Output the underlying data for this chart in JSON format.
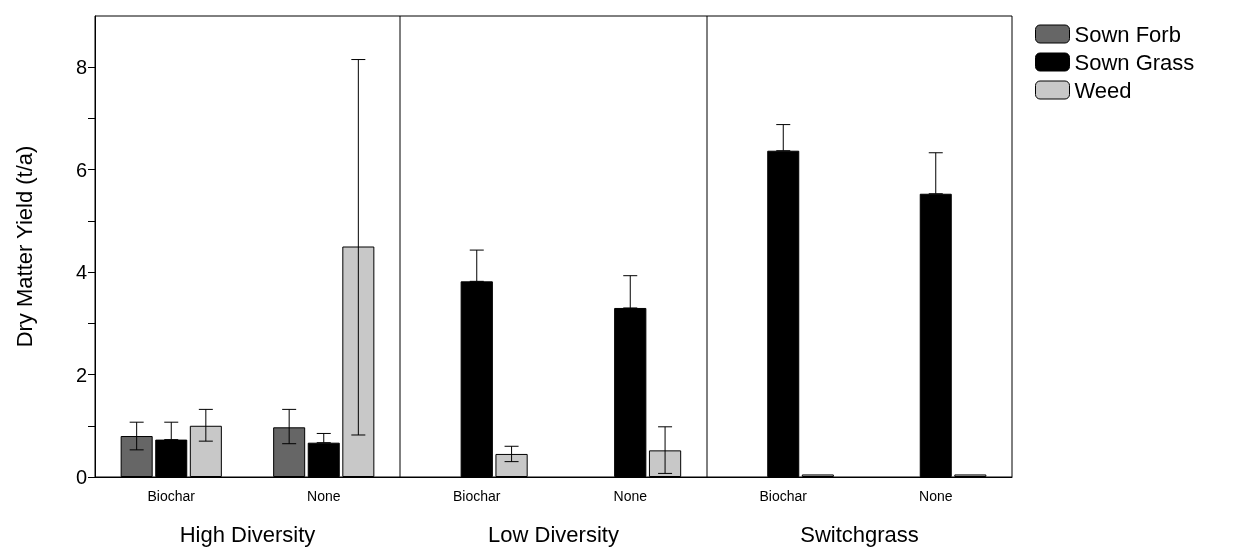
{
  "chart_data": [
    {
      "type": "bar",
      "categories": [
        "Biochar",
        "None"
      ],
      "xlabel": "High Diversity",
      "ylabel": "Dry Matter Yield (t/a)",
      "ylim": [
        0,
        9
      ],
      "yticks": [
        0,
        {
          "value": 1,
          "label": null
        },
        2,
        {
          "value": 3,
          "label": null
        },
        4,
        {
          "value": 5,
          "label": null
        },
        6,
        {
          "value": 7,
          "label": null
        },
        8
      ],
      "legend": false,
      "series": [
        {
          "color": "#666666",
          "values": [
            0.8,
            0.97
          ],
          "errors": [
            [
              0.53,
              1.07
            ],
            [
              0.65,
              1.32
            ]
          ]
        },
        {
          "color": "#000000",
          "values": [
            0.73,
            0.67
          ],
          "errors": [
            [
              0.73,
              1.07
            ],
            [
              0.67,
              0.85
            ]
          ]
        },
        {
          "color": "#c8c8c8",
          "values": [
            1.0,
            4.5
          ],
          "errors": [
            [
              0.7,
              1.32
            ],
            [
              0.82,
              8.15
            ]
          ]
        }
      ]
    },
    {
      "type": "bar",
      "categories": [
        "Biochar",
        "None"
      ],
      "xlabel": "Low Diversity",
      "ylim": [
        0,
        9
      ],
      "tick_labels": "x",
      "legend": false,
      "series": [
        {
          "color": "#666666",
          "values": [
            null,
            null
          ]
        },
        {
          "color": "#000000",
          "values": [
            3.82,
            3.3
          ],
          "errors": [
            [
              3.82,
              4.43
            ],
            [
              3.3,
              3.93
            ]
          ]
        },
        {
          "color": "#c8c8c8",
          "values": [
            0.45,
            0.52
          ],
          "errors": [
            [
              0.3,
              0.6
            ],
            [
              0.07,
              0.98
            ]
          ]
        }
      ]
    },
    {
      "type": "bar",
      "categories": [
        "Biochar",
        "None"
      ],
      "xlabel": "Switchgrass",
      "ylim": [
        0,
        9
      ],
      "tick_labels": "x",
      "legend": "right",
      "series": [
        {
          "name": "Sown Forb",
          "color": "#666666",
          "values": [
            null,
            null
          ]
        },
        {
          "name": "Sown Grass",
          "color": "#000000",
          "values": [
            6.37,
            5.53
          ],
          "errors": [
            [
              6.37,
              6.88
            ],
            [
              5.53,
              6.33
            ]
          ]
        },
        {
          "name": "Weed",
          "color": "#c8c8c8",
          "values": [
            0.05,
            0.05
          ]
        }
      ]
    }
  ]
}
